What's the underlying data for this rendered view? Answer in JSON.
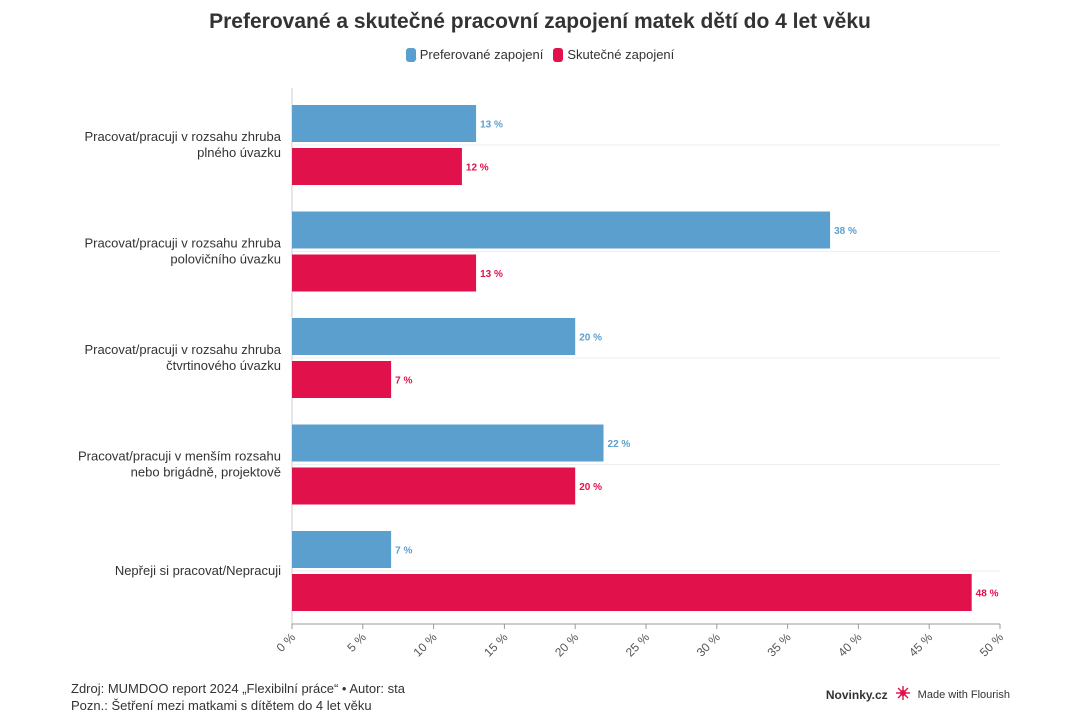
{
  "chart_data": {
    "type": "bar",
    "orientation": "horizontal",
    "title": "Preferované a skutečné pracovní zapojení matek dětí do 4 let věku",
    "categories": [
      [
        "Pracovat/pracuji v rozsahu zhruba",
        "plného úvazku"
      ],
      [
        "Pracovat/pracuji v rozsahu zhruba",
        "polovičního úvazku"
      ],
      [
        "Pracovat/pracuji v rozsahu zhruba",
        "čtvrtinového úvazku"
      ],
      [
        "Pracovat/pracuji v menším rozsahu",
        "nebo brigádně, projektově"
      ],
      [
        "Nepřeji si pracovat/Nepracuji"
      ]
    ],
    "series": [
      {
        "name": "Preferované zapojení",
        "color": "#5b9fcf",
        "values": [
          13,
          38,
          20,
          22,
          7
        ]
      },
      {
        "name": "Skutečné zapojení",
        "color": "#e0114b",
        "values": [
          12,
          13,
          7,
          20,
          48
        ]
      }
    ],
    "value_suffix": " %",
    "xlim": [
      0,
      50
    ],
    "xticks": [
      0,
      5,
      10,
      15,
      20,
      25,
      30,
      35,
      40,
      45,
      50
    ],
    "xtick_labels": [
      "0 %",
      "5 %",
      "10 %",
      "15 %",
      "20 %",
      "25 %",
      "30 %",
      "35 %",
      "40 %",
      "45 %",
      "50 %"
    ],
    "grid": "horizontal separators",
    "legend_position": "top-center"
  },
  "footer": {
    "source": "Zdroj: MUMDOO report 2024 „Flexibilní práce“ • Autor: sta",
    "note": "Pozn.: Šetření mezi matkami s dítětem do 4 let věku"
  },
  "branding": {
    "brand": "Novinky.cz",
    "flourish": "Made with Flourish",
    "flourish_icon": "flourish-star-icon"
  }
}
